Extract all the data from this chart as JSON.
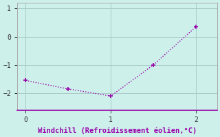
{
  "x": [
    0,
    0.5,
    1.0,
    1.5,
    2.0
  ],
  "y": [
    -1.55,
    -1.85,
    -2.1,
    -1.0,
    0.35
  ],
  "line_color": "#9900aa",
  "marker": "+",
  "marker_color": "#9900aa",
  "bg_color": "#cdf0eb",
  "grid_color": "#aaccc8",
  "spine_color": "#aaaaaa",
  "bottom_spine_color": "#9900aa",
  "xlabel": "Windchill (Refroidissement éolien,°C)",
  "xlabel_color": "#9900aa",
  "xlabel_fontsize": 7.5,
  "tick_color": "#333333",
  "tick_label_color": "#333333",
  "ylim": [
    -2.6,
    1.2
  ],
  "xlim": [
    -0.1,
    2.25
  ],
  "yticks": [
    1,
    0,
    -1,
    -2
  ],
  "xticks": [
    0,
    1,
    2
  ],
  "linewidth": 1.0,
  "markersize": 5,
  "line_style": ":"
}
